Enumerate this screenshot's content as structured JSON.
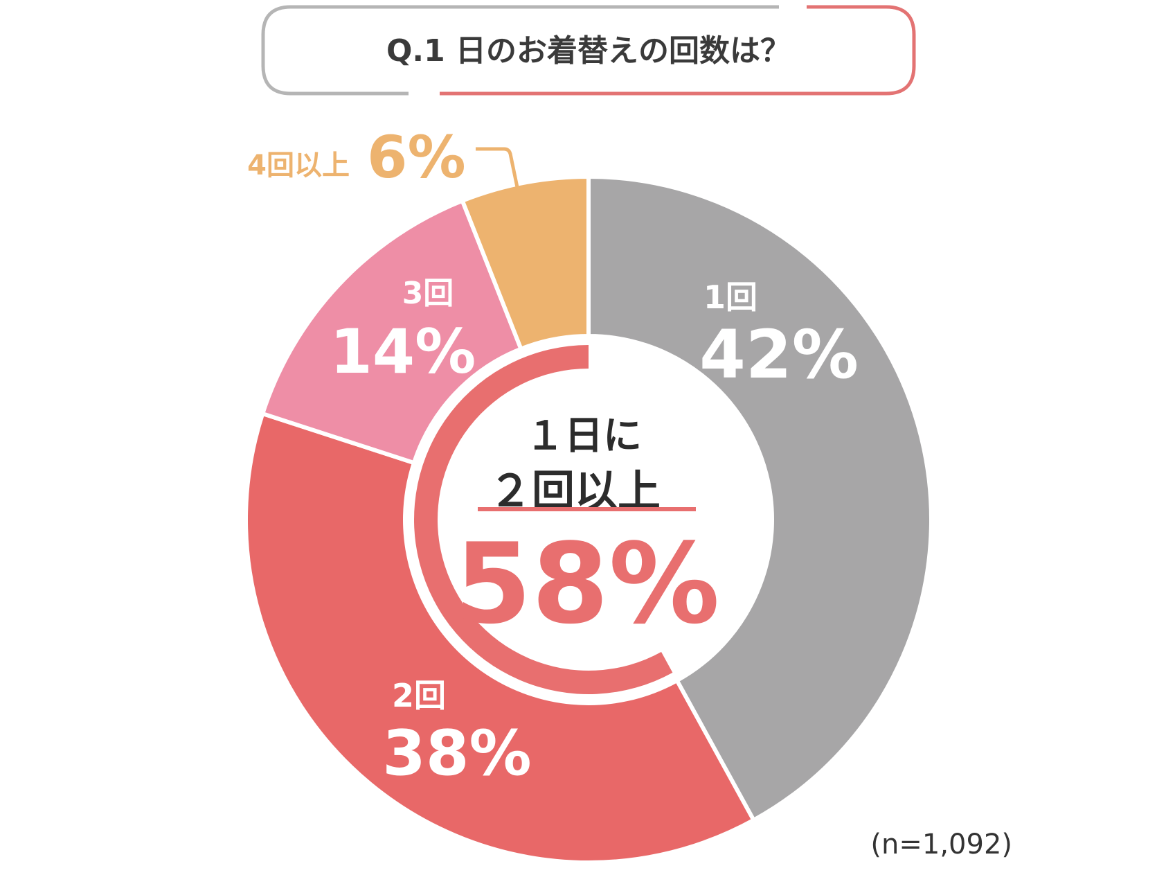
{
  "title": "Q.1 日のお着替えの回数は？",
  "note": "(n=1,092)",
  "colors": {
    "gray": "#a7a6a7",
    "red": "#e86868",
    "pink": "#ee8ea6",
    "orange": "#edb36f",
    "title_border_gray": "#b5b5b5",
    "title_border_red": "#e37373",
    "highlight": "#e86f6f",
    "text_dark": "#2c2c2c"
  },
  "center": {
    "line1": "１日に",
    "line2": "２回以上",
    "value": "58%"
  },
  "chart_data": {
    "type": "pie",
    "title": "Q.1 日のお着替えの回数は？",
    "categories": [
      "1回",
      "2回",
      "3回",
      "4回以上"
    ],
    "values": [
      42,
      38,
      14,
      6
    ],
    "unit": "%",
    "slices": [
      {
        "label": "1回",
        "value_label": "42%",
        "value": 42,
        "color": "#a7a6a7"
      },
      {
        "label": "2回",
        "value_label": "38%",
        "value": 38,
        "color": "#e86868"
      },
      {
        "label": "3回",
        "value_label": "14%",
        "value": 14,
        "color": "#ee8ea6"
      },
      {
        "label": "4回以上",
        "value_label": "6%",
        "value": 6,
        "color": "#edb36f"
      }
    ],
    "annotation": {
      "label": "２回以上",
      "value": 58
    }
  }
}
